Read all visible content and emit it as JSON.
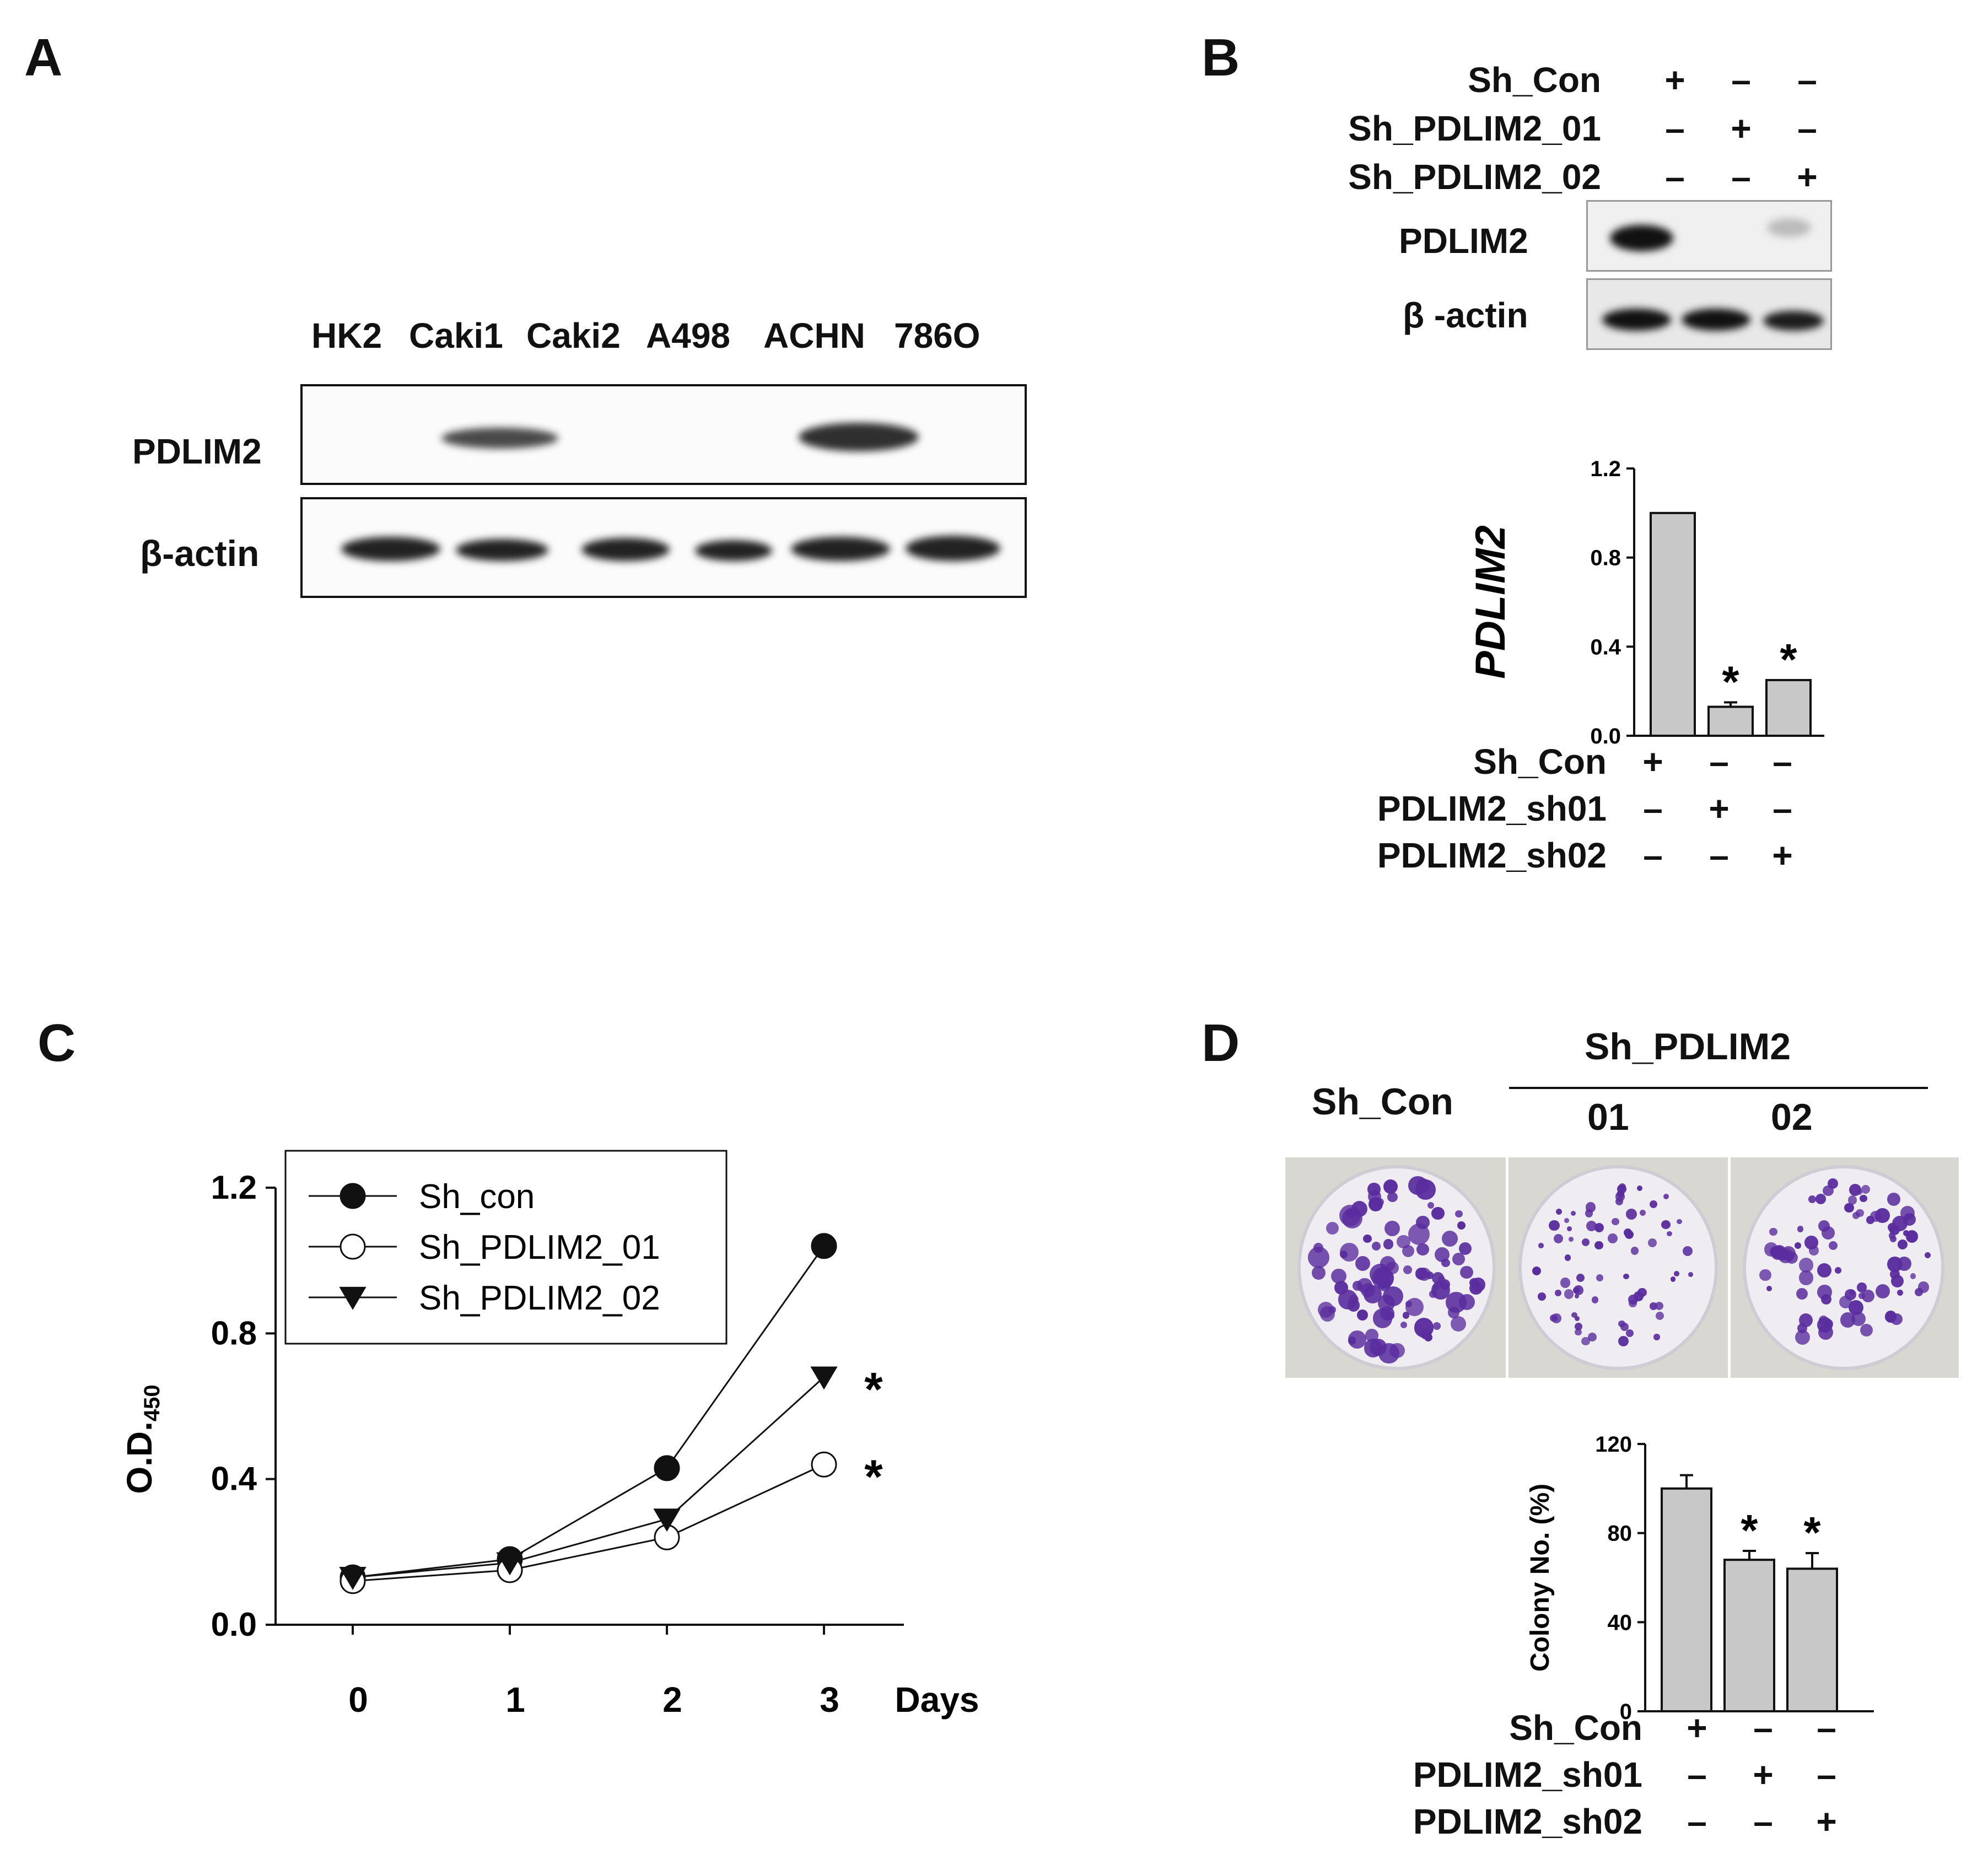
{
  "panels": {
    "a": "A",
    "b": "B",
    "c": "C",
    "d": "D"
  },
  "panelA": {
    "lanes": [
      "HK2",
      "Caki1",
      "Caki2",
      "A498",
      "ACHN",
      "786O"
    ],
    "row1": "PDLIM2",
    "row2": "β-actin"
  },
  "panelB": {
    "conditions": [
      {
        "label": "Sh_Con",
        "signs": [
          "+",
          "–",
          "–"
        ]
      },
      {
        "label": "Sh_PDLIM2_01",
        "signs": [
          "–",
          "+",
          "–"
        ]
      },
      {
        "label": "Sh_PDLIM2_02",
        "signs": [
          "–",
          "–",
          "+"
        ]
      }
    ],
    "row1": "PDLIM2",
    "row2": "β -actin",
    "bar_conditions": [
      {
        "label": "Sh_Con",
        "signs": [
          "+",
          "–",
          "–"
        ]
      },
      {
        "label": "PDLIM2_sh01",
        "signs": [
          "–",
          "+",
          "–"
        ]
      },
      {
        "label": "PDLIM2_sh02",
        "signs": [
          "–",
          "–",
          "+"
        ]
      }
    ]
  },
  "panelD": {
    "group": "Sh_PDLIM2",
    "con": "Sh_Con",
    "sub1": "01",
    "sub2": "02",
    "bar_conditions": [
      {
        "label": "Sh_Con",
        "signs": [
          "+",
          "–",
          "–"
        ]
      },
      {
        "label": "PDLIM2_sh01",
        "signs": [
          "–",
          "+",
          "–"
        ]
      },
      {
        "label": "PDLIM2_sh02",
        "signs": [
          "–",
          "–",
          "+"
        ]
      }
    ]
  },
  "colors": {
    "bar_fill": "#c8c8c8",
    "line": "#111111",
    "colony": "#5a2d9e"
  },
  "chart_data": [
    {
      "id": "B",
      "type": "bar",
      "ylabel": "PDLIM2",
      "ylim": [
        0,
        1.2
      ],
      "yticks": [
        "0.0",
        "0.4",
        "0.8",
        "1.2"
      ],
      "values": [
        1.0,
        0.13,
        0.25
      ],
      "errors": [
        0,
        0.02,
        0
      ],
      "significant": [
        "",
        "*",
        "*"
      ]
    },
    {
      "id": "C",
      "type": "line",
      "ylabel": "O.D.",
      "ylabel_sub": "450",
      "xlabel": "Days",
      "ylim": [
        0,
        1.2
      ],
      "yticks": [
        "0.0",
        "0.4",
        "0.8",
        "1.2"
      ],
      "x": [
        0,
        1,
        2,
        3
      ],
      "xticks": [
        "0",
        "1",
        "2",
        "3"
      ],
      "series": [
        {
          "name": "Sh_con",
          "marker": "filled-circle",
          "values": [
            0.13,
            0.18,
            0.43,
            1.04
          ]
        },
        {
          "name": "Sh_PDLIM2_01",
          "marker": "open-circle",
          "values": [
            0.12,
            0.15,
            0.24,
            0.44
          ]
        },
        {
          "name": "Sh_PDLIM2_02",
          "marker": "filled-triangle-down",
          "values": [
            0.13,
            0.17,
            0.29,
            0.68
          ]
        }
      ],
      "significant": [
        "",
        "*",
        "*"
      ]
    },
    {
      "id": "D",
      "type": "bar",
      "ylabel": "Colony No. (%)",
      "ylim": [
        0,
        120
      ],
      "yticks": [
        "0",
        "40",
        "80",
        "120"
      ],
      "values": [
        100,
        68,
        64
      ],
      "errors": [
        6,
        4,
        7
      ],
      "significant": [
        "",
        "*",
        "*"
      ]
    }
  ]
}
